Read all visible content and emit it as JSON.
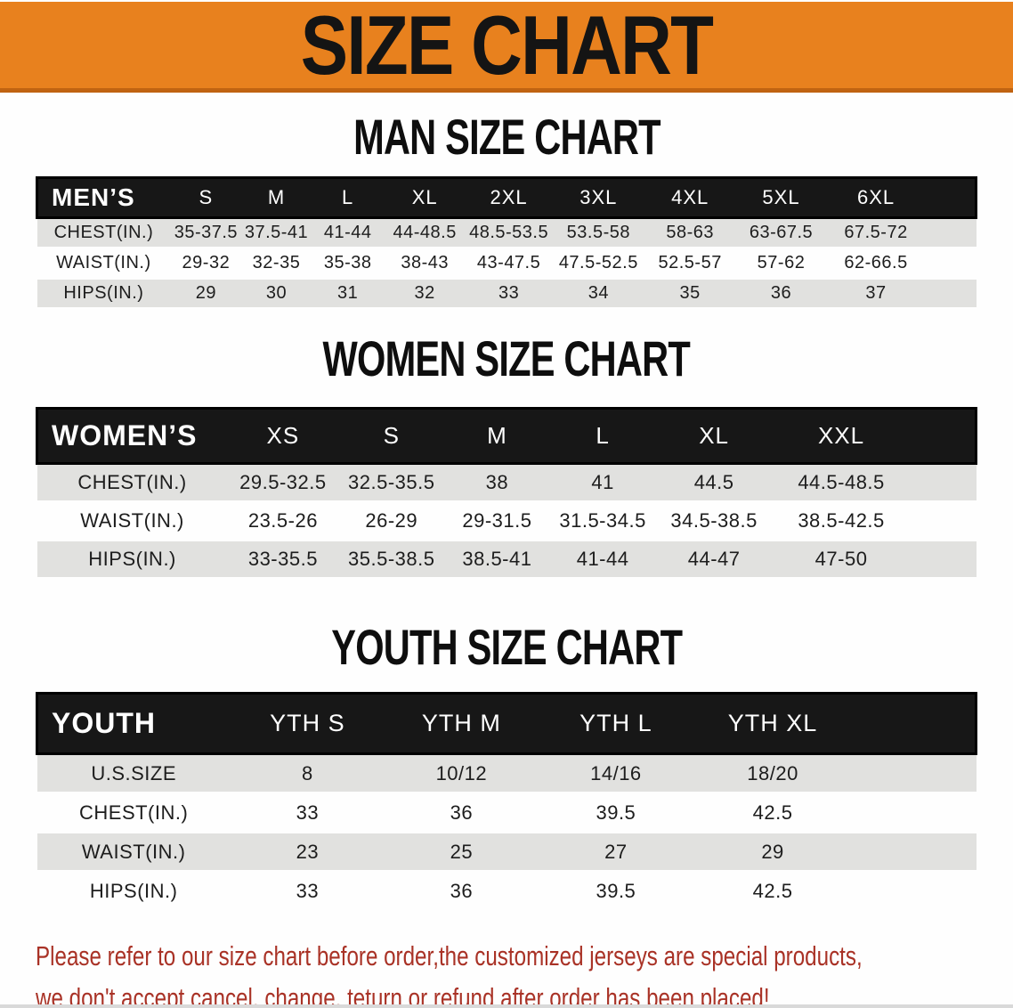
{
  "banner": {
    "title": "SIZE CHART"
  },
  "sections": [
    {
      "heading": "MAN SIZE CHART",
      "label_header": "MEN’S",
      "columns": [
        "S",
        "M",
        "L",
        "XL",
        "2XL",
        "3XL",
        "4XL",
        "5XL",
        "6XL"
      ],
      "rows": [
        {
          "label": "CHEST(IN.)",
          "values": [
            "35-37.5",
            "37.5-41",
            "41-44",
            "44-48.5",
            "48.5-53.5",
            "53.5-58",
            "58-63",
            "63-67.5",
            "67.5-72"
          ]
        },
        {
          "label": "WAIST(IN.)",
          "values": [
            "29-32",
            "32-35",
            "35-38",
            "38-43",
            "43-47.5",
            "47.5-52.5",
            "52.5-57",
            "57-62",
            "62-66.5"
          ]
        },
        {
          "label": "HIPS(IN.)",
          "values": [
            "29",
            "30",
            "31",
            "32",
            "33",
            "34",
            "35",
            "36",
            "37"
          ]
        }
      ]
    },
    {
      "heading": "WOMEN SIZE CHART",
      "label_header": "WOMEN’S",
      "columns": [
        "XS",
        "S",
        "M",
        "L",
        "XL",
        "XXL"
      ],
      "rows": [
        {
          "label": "CHEST(IN.)",
          "values": [
            "29.5-32.5",
            "32.5-35.5",
            "38",
            "41",
            "44.5",
            "44.5-48.5"
          ]
        },
        {
          "label": "WAIST(IN.)",
          "values": [
            "23.5-26",
            "26-29",
            "29-31.5",
            "31.5-34.5",
            "34.5-38.5",
            "38.5-42.5"
          ]
        },
        {
          "label": "HIPS(IN.)",
          "values": [
            "33-35.5",
            "35.5-38.5",
            "38.5-41",
            "41-44",
            "44-47",
            "47-50"
          ]
        }
      ]
    },
    {
      "heading": "YOUTH SIZE CHART",
      "label_header": "YOUTH",
      "columns": [
        "YTH S",
        "YTH M",
        "YTH L",
        "YTH XL"
      ],
      "rows": [
        {
          "label": "U.S.SIZE",
          "values": [
            "8",
            "10/12",
            "14/16",
            "18/20"
          ]
        },
        {
          "label": "CHEST(IN.)",
          "values": [
            "33",
            "36",
            "39.5",
            "42.5"
          ]
        },
        {
          "label": "WAIST(IN.)",
          "values": [
            "23",
            "25",
            "27",
            "29"
          ]
        },
        {
          "label": "HIPS(IN.)",
          "values": [
            "33",
            "36",
            "39.5",
            "42.5"
          ]
        }
      ]
    }
  ],
  "footer_note": {
    "lines": [
      "Please refer to our size chart before order,the customized jerseys are special products,",
      "we don't accept cancel, change, teturn or refund after order has been placed!"
    ]
  },
  "colors": {
    "banner_bg": "#E8811E",
    "header_bg": "#171717",
    "row_alt": "#E1E1DF",
    "note_red": "#A93226"
  }
}
